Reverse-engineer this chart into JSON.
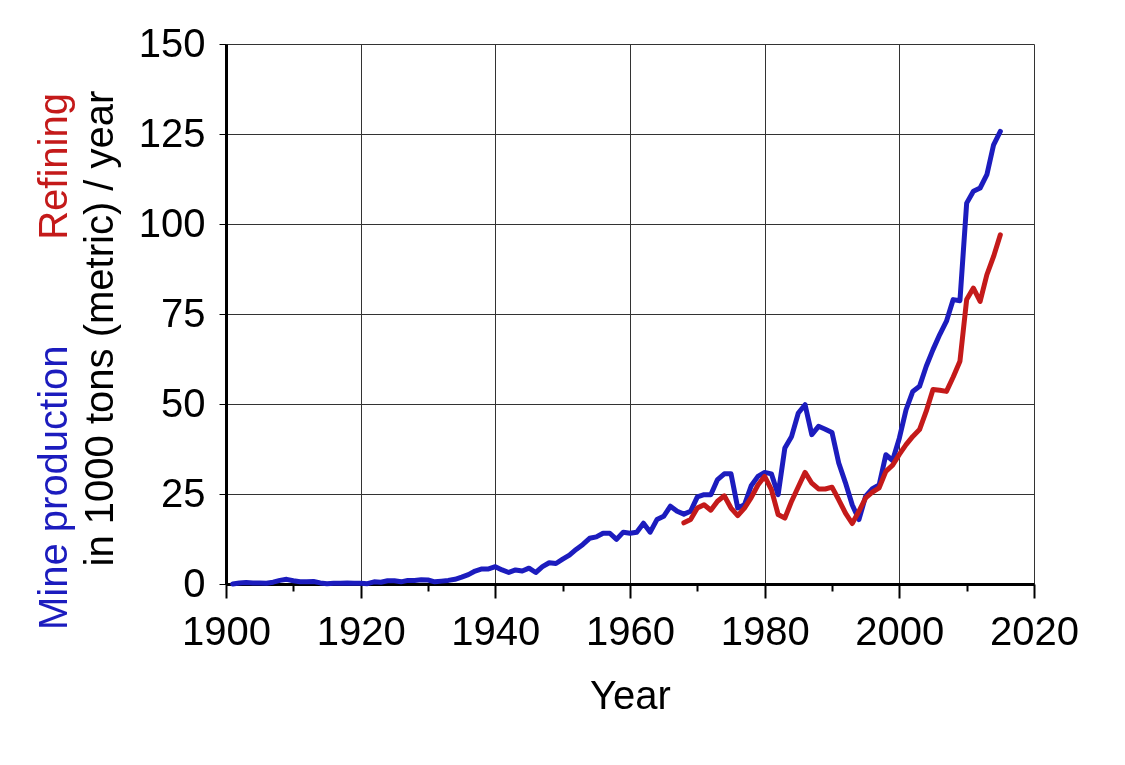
{
  "chart_data": {
    "type": "line",
    "xlabel": "Year",
    "ylabel": "in 1000 tons (metric) / year",
    "xlim": [
      1900,
      2020
    ],
    "ylim": [
      0,
      150
    ],
    "xticks": [
      1900,
      {
        "value": 1910,
        "label": null
      },
      1920,
      {
        "value": 1930,
        "label": null
      },
      1940,
      {
        "value": 1950,
        "label": null
      },
      1960,
      {
        "value": 1970,
        "label": null
      },
      1980,
      {
        "value": 1990,
        "label": null
      },
      2000,
      {
        "value": 2010,
        "label": null
      },
      2020
    ],
    "yticks": [
      0,
      25,
      50,
      75,
      100,
      125,
      150
    ],
    "grid": true,
    "line_style": "solid",
    "series": [
      {
        "name": "Mine production",
        "color": "#1c1cbe",
        "x": [
          1901,
          1902,
          1903,
          1904,
          1905,
          1906,
          1907,
          1908,
          1909,
          1910,
          1911,
          1912,
          1913,
          1914,
          1915,
          1916,
          1917,
          1918,
          1919,
          1920,
          1921,
          1922,
          1923,
          1924,
          1925,
          1926,
          1927,
          1928,
          1929,
          1930,
          1931,
          1932,
          1933,
          1934,
          1935,
          1936,
          1937,
          1938,
          1939,
          1940,
          1941,
          1942,
          1943,
          1944,
          1945,
          1946,
          1947,
          1948,
          1949,
          1950,
          1951,
          1952,
          1953,
          1954,
          1955,
          1956,
          1957,
          1958,
          1959,
          1960,
          1961,
          1962,
          1963,
          1964,
          1965,
          1966,
          1967,
          1968,
          1969,
          1970,
          1971,
          1972,
          1973,
          1974,
          1975,
          1976,
          1977,
          1978,
          1979,
          1980,
          1981,
          1982,
          1983,
          1984,
          1985,
          1986,
          1987,
          1988,
          1989,
          1990,
          1991,
          1992,
          1993,
          1994,
          1995,
          1996,
          1997,
          1998,
          1999,
          2000,
          2001,
          2002,
          2003,
          2004,
          2005,
          2006,
          2007,
          2008,
          2009,
          2010,
          2011,
          2012,
          2013,
          2014,
          2015
        ],
        "values": [
          0.0,
          0.3,
          0.4,
          0.3,
          0.3,
          0.2,
          0.5,
          1.0,
          1.3,
          0.9,
          0.6,
          0.6,
          0.7,
          0.3,
          0.1,
          0.2,
          0.2,
          0.3,
          0.2,
          0.2,
          0.1,
          0.6,
          0.5,
          0.9,
          0.9,
          0.6,
          1.0,
          1.0,
          1.2,
          1.1,
          0.6,
          0.8,
          1.0,
          1.3,
          1.9,
          2.6,
          3.6,
          4.2,
          4.2,
          4.8,
          3.9,
          3.2,
          3.9,
          3.6,
          4.4,
          3.2,
          4.8,
          5.9,
          5.7,
          6.9,
          8.0,
          9.6,
          11.0,
          12.7,
          13.1,
          14.1,
          14.1,
          12.4,
          14.4,
          14.1,
          14.4,
          16.9,
          14.4,
          17.9,
          18.8,
          21.6,
          20.2,
          19.4,
          20.2,
          24.2,
          24.8,
          24.8,
          29.0,
          30.6,
          30.6,
          21.1,
          22.0,
          27.3,
          29.9,
          31.0,
          30.6,
          24.8,
          37.8,
          41.0,
          47.5,
          49.8,
          41.5,
          43.8,
          43.0,
          42.1,
          33.6,
          28.1,
          22.0,
          17.9,
          24.4,
          26.5,
          27.5,
          35.9,
          34.3,
          40.5,
          48.4,
          53.5,
          54.9,
          60.5,
          65.1,
          69.3,
          73.0,
          79.0,
          78.7,
          105.8,
          109.1,
          110.0,
          113.7,
          122.0,
          125.7
        ]
      },
      {
        "name": "Refining",
        "color": "#c41a1a",
        "x": [
          1968,
          1969,
          1970,
          1971,
          1972,
          1973,
          1974,
          1975,
          1976,
          1977,
          1978,
          1979,
          1980,
          1981,
          1982,
          1983,
          1984,
          1985,
          1986,
          1987,
          1988,
          1989,
          1990,
          1991,
          1992,
          1993,
          1994,
          1995,
          1996,
          1997,
          1998,
          1999,
          2000,
          2001,
          2002,
          2003,
          2004,
          2005,
          2006,
          2007,
          2008,
          2009,
          2010,
          2011,
          2012,
          2013,
          2014,
          2015
        ],
        "values": [
          17.0,
          17.9,
          21.1,
          22.0,
          20.5,
          23.0,
          24.5,
          21.1,
          19.0,
          21.1,
          24.0,
          27.5,
          29.9,
          26.2,
          19.3,
          18.3,
          23.0,
          27.0,
          31.0,
          28.0,
          26.4,
          26.4,
          26.9,
          23.4,
          19.7,
          16.8,
          20.2,
          23.9,
          25.5,
          26.7,
          31.3,
          33.0,
          36.0,
          38.7,
          41.0,
          42.9,
          48.0,
          54.0,
          53.8,
          53.5,
          57.5,
          61.9,
          79.0,
          82.2,
          78.5,
          85.9,
          91.0,
          97.0
        ]
      }
    ]
  }
}
